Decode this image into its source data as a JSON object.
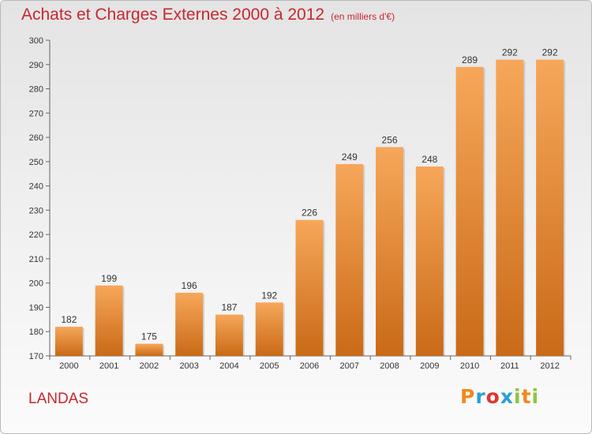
{
  "header": {
    "title": "Achats et Charges Externes 2000 à 2012",
    "unit": "(en milliers d'€)"
  },
  "footer": {
    "place": "LANDAS",
    "logo_text": "Proxiti",
    "logo_colors": [
      "#f08a1e",
      "#2a9fd6",
      "#e3342f",
      "#2a9fd6",
      "#8cc63f",
      "#f08a1e",
      "#8cc63f"
    ]
  },
  "chart_data": {
    "type": "bar",
    "title": "Achats et Charges Externes 2000 à 2012",
    "subtitle": "(en milliers d'€)",
    "xlabel": "",
    "ylabel": "",
    "categories": [
      "2000",
      "2001",
      "2002",
      "2003",
      "2004",
      "2005",
      "2006",
      "2007",
      "2008",
      "2009",
      "2010",
      "2011",
      "2012"
    ],
    "values": [
      182,
      199,
      175,
      196,
      187,
      192,
      226,
      249,
      256,
      248,
      289,
      292,
      292
    ],
    "ylim": [
      170,
      300
    ],
    "yticks": [
      170,
      180,
      190,
      200,
      210,
      220,
      230,
      240,
      250,
      260,
      270,
      280,
      290,
      300
    ],
    "grid": false,
    "legend": "none",
    "bar_color_top": "#f7a75a",
    "bar_color_bottom": "#c96a17",
    "label_color": "#333333"
  }
}
